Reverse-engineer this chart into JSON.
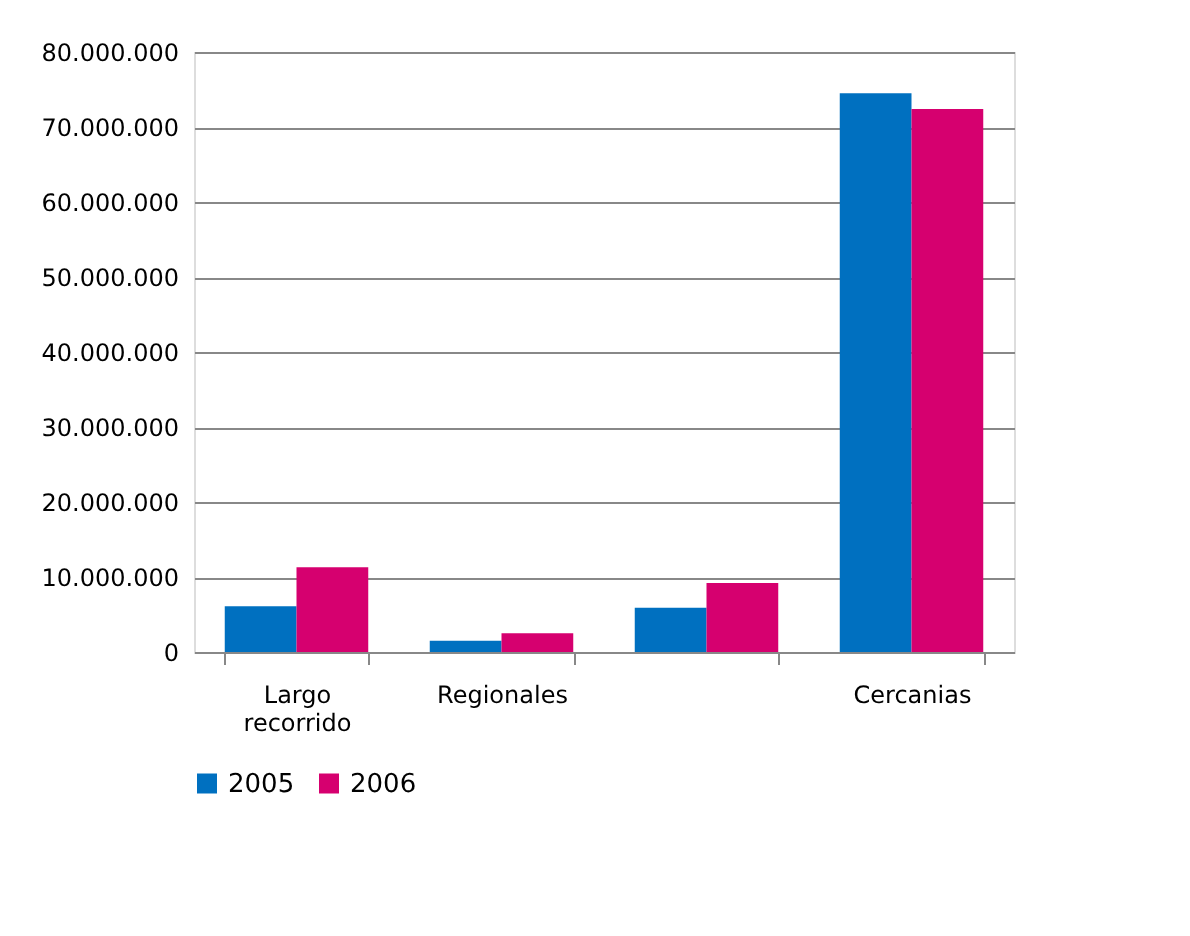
{
  "chart_data": {
    "type": "bar",
    "categories": [
      "Largo recorrido",
      "Regionales",
      null,
      "Cercanias"
    ],
    "series": [
      {
        "name": "2005",
        "color": "#0070c0",
        "values": [
          6100000,
          1500000,
          5900000,
          74500000
        ]
      },
      {
        "name": "2006",
        "color": "#d6006f",
        "values": [
          11300000,
          2500000,
          9200000,
          72400000
        ]
      }
    ],
    "ylim": [
      0,
      80000000
    ],
    "yticks": [
      {
        "value": 0,
        "label": "0"
      },
      {
        "value": 10000000,
        "label": "10.000.000"
      },
      {
        "value": 20000000,
        "label": "20.000.000"
      },
      {
        "value": 30000000,
        "label": "30.000.000"
      },
      {
        "value": 40000000,
        "label": "40.000.000"
      },
      {
        "value": 50000000,
        "label": "50.000.000"
      },
      {
        "value": 60000000,
        "label": "60.000.000"
      },
      {
        "value": 70000000,
        "label": "70.000.000"
      },
      {
        "value": 80000000,
        "label": "80.000.000"
      }
    ],
    "grid": "y",
    "legend": "bottom"
  }
}
